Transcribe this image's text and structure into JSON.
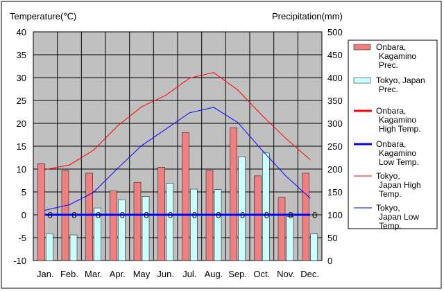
{
  "chart_data": {
    "type": "bar",
    "left_axis_title": "Temperature(℃)",
    "right_axis_title": "Precipitation(mm)",
    "categories": [
      "Jan.",
      "Feb.",
      "Mar.",
      "Apr.",
      "May",
      "Jun.",
      "Jul.",
      "Aug.",
      "Sep.",
      "Oct.",
      "Nov.",
      "Dec."
    ],
    "y_left_lim": [
      -10,
      40
    ],
    "y_left_ticks": [
      "40",
      "35",
      "30",
      "25",
      "20",
      "15",
      "10",
      "5",
      "0",
      "-5",
      "-10"
    ],
    "y_right_lim": [
      0,
      500
    ],
    "y_right_ticks": [
      "500",
      "450",
      "400",
      "350",
      "300",
      "250",
      "200",
      "150",
      "100",
      "50",
      "0"
    ],
    "grid": true,
    "legend_position": "right",
    "bar_series": [
      {
        "name": "Onbara, Kagamino Prec.",
        "color": "#f08080",
        "values": [
          212,
          197,
          191,
          152,
          171,
          204,
          280,
          197,
          290,
          185,
          138,
          191
        ]
      },
      {
        "name": "Tokyo, Japan Prec.",
        "color": "#ccffff",
        "values": [
          59,
          56,
          115,
          133,
          140,
          169,
          156,
          155,
          227,
          235,
          96,
          58
        ]
      }
    ],
    "line_series": [
      {
        "name": "Onbara, Kagamino High Temp.",
        "color": "#ff0000",
        "width": "thick",
        "values": [
          0,
          0,
          0,
          0,
          0,
          0,
          0,
          0,
          0,
          0,
          0,
          0
        ]
      },
      {
        "name": "Onbara, Kagamino Low Temp.",
        "color": "#0000ff",
        "width": "thick",
        "values": [
          0,
          0,
          0,
          0,
          0,
          0,
          0,
          0,
          0,
          0,
          0,
          0
        ]
      },
      {
        "name": "Tokyo, Japan High Temp.",
        "color": "#ff0000",
        "width": "thin",
        "values": [
          9.9,
          10.9,
          14.1,
          19.4,
          23.6,
          26.1,
          29.9,
          31.1,
          27.3,
          21.8,
          16.7,
          12.1
        ]
      },
      {
        "name": "Tokyo, Japan Low Temp.",
        "color": "#0000ff",
        "width": "thin",
        "values": [
          1.0,
          2.2,
          4.9,
          10.1,
          15.1,
          18.7,
          22.3,
          23.5,
          20.2,
          14.2,
          8.5,
          3.7
        ]
      }
    ],
    "zero_labels": [
      "0",
      "0",
      "0",
      "0",
      "0",
      "0",
      "0",
      "0",
      "0",
      "0",
      "0",
      "0"
    ]
  }
}
